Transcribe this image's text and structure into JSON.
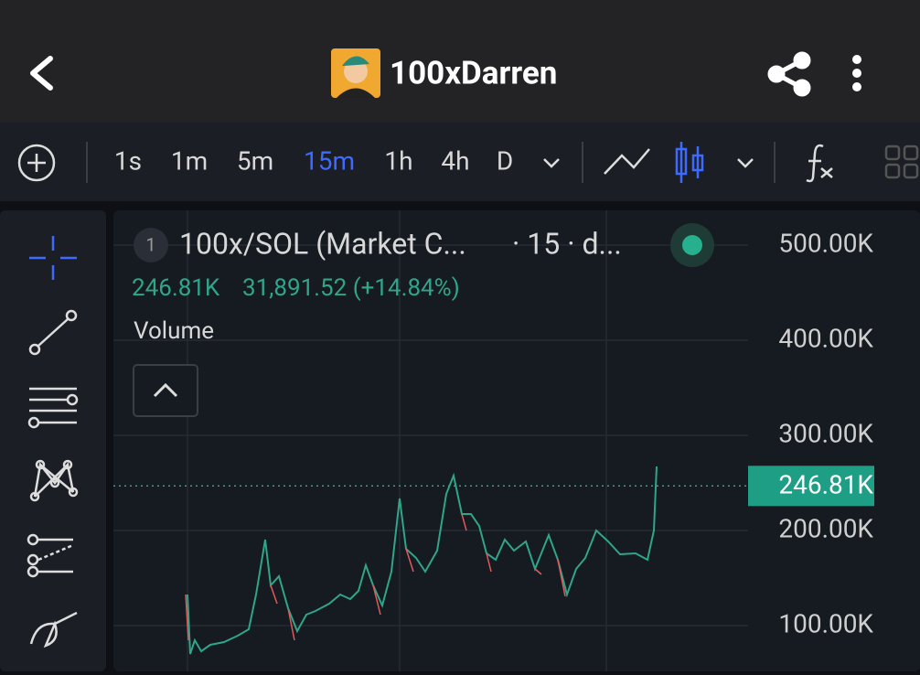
{
  "header": {
    "title": "100xDarren"
  },
  "toolbar": {
    "intervals": [
      "1s",
      "1m",
      "5m",
      "15m",
      "1h",
      "4h",
      "D"
    ],
    "active_interval": "15m"
  },
  "legend": {
    "index": "1",
    "symbol": "100x/SOL (Market C...",
    "details": "· 15 · d...",
    "price": "246.81K",
    "change": "31,891.52 (+14.84%)",
    "indicator": "Volume"
  },
  "price_axis": {
    "ylim": [
      51900,
      536500
    ],
    "ticks": [
      {
        "value": 500000,
        "label": "500.00K"
      },
      {
        "value": 400000,
        "label": "400.00K"
      },
      {
        "value": 300000,
        "label": "300.00K"
      },
      {
        "value": 200000,
        "label": "200.00K"
      },
      {
        "value": 100000,
        "label": "100.00K"
      }
    ],
    "current": {
      "value": 246810,
      "label": "246.81K"
    }
  }
}
